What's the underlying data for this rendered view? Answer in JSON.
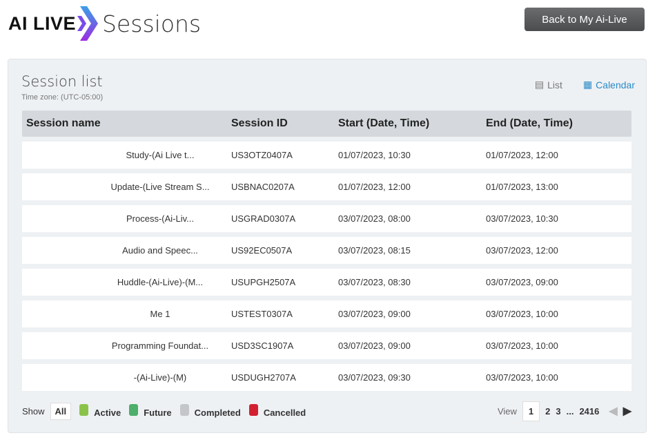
{
  "header": {
    "brand": "AI LIVE",
    "title": "Sessions",
    "back_label": "Back to My Ai-Live"
  },
  "panel": {
    "title": "Session list",
    "timezone": "Time zone: (UTC-05:00)",
    "view_list": "List",
    "view_calendar": "Calendar"
  },
  "table": {
    "columns": [
      "Session name",
      "Session ID",
      "Start (Date, Time)",
      "End (Date, Time)"
    ],
    "rows": [
      [
        "Study-(Ai Live t...",
        "US3OTZ0407A",
        "01/07/2023, 10:30",
        "01/07/2023, 12:00"
      ],
      [
        "Update-(Live Stream S...",
        "USBNAC0207A",
        "01/07/2023, 12:00",
        "01/07/2023, 13:00"
      ],
      [
        "Process-(Ai-Liv...",
        "USGRAD0307A",
        "03/07/2023, 08:00",
        "03/07/2023, 10:30"
      ],
      [
        "Audio and Speec...",
        "US92EC0507A",
        "03/07/2023, 08:15",
        "03/07/2023, 12:00"
      ],
      [
        "Huddle-(Ai-Live)-(M...",
        "USUPGH2507A",
        "03/07/2023, 08:30",
        "03/07/2023, 09:00"
      ],
      [
        "Me 1",
        "USTEST0307A",
        "03/07/2023, 09:00",
        "03/07/2023, 10:00"
      ],
      [
        "Programming Foundat...",
        "USD3SC1907A",
        "03/07/2023, 09:00",
        "03/07/2023, 10:00"
      ],
      [
        "-(Ai-Live)-(M)",
        "USDUGH2707A",
        "03/07/2023, 09:30",
        "03/07/2023, 10:00"
      ]
    ]
  },
  "footer": {
    "show": "Show",
    "all": "All",
    "legend": [
      {
        "label": "Active",
        "color": "#8bc34a"
      },
      {
        "label": "Future",
        "color": "#4caf6a"
      },
      {
        "label": "Completed",
        "color": "#c4c6c8"
      },
      {
        "label": "Cancelled",
        "color": "#d32030"
      }
    ],
    "view": "View",
    "pages": [
      "1",
      "2",
      "3",
      "...",
      "2416"
    ],
    "current_page": "1"
  }
}
